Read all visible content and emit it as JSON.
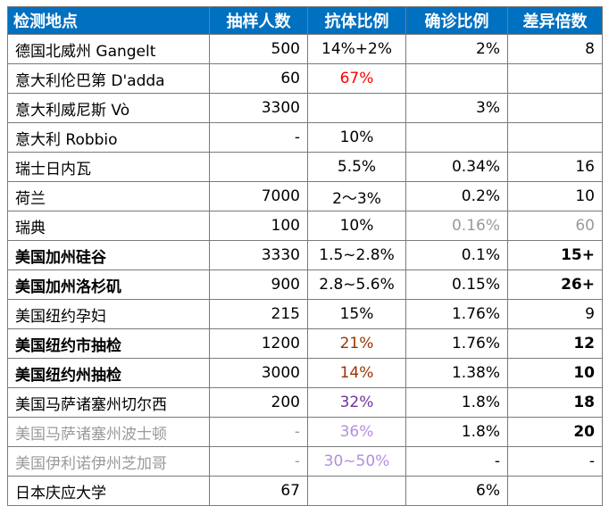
{
  "header": {
    "location": "检测地点",
    "sample_size": "抽样人数",
    "antibody_ratio": "抗体比例",
    "confirmed_ratio": "确诊比例",
    "multiple": "差异倍数"
  },
  "rows": [
    {
      "location": "德国北威州 Gangelt",
      "sample": "500",
      "antibody": "14%+2%",
      "confirmed": "2%",
      "multiple": "8"
    },
    {
      "location": "意大利伦巴第 D'adda",
      "sample": "60",
      "antibody": "67%",
      "confirmed": "",
      "multiple": ""
    },
    {
      "location": "意大利威尼斯 Vò",
      "sample": "3300",
      "antibody": "",
      "confirmed": "3%",
      "multiple": ""
    },
    {
      "location": "意大利 Robbio",
      "sample": "-",
      "antibody": "10%",
      "confirmed": "",
      "multiple": ""
    },
    {
      "location": "瑞士日内瓦",
      "sample": "",
      "antibody": "5.5%",
      "confirmed": "0.34%",
      "multiple": "16"
    },
    {
      "location": "荷兰",
      "sample": "7000",
      "antibody": "2～3%",
      "confirmed": "0.2%",
      "multiple": "10"
    },
    {
      "location": "瑞典",
      "sample": "100",
      "antibody": "10%",
      "confirmed": "0.16%",
      "multiple": "60"
    },
    {
      "location": "美国加州硅谷",
      "sample": "3330",
      "antibody": "1.5~2.8%",
      "confirmed": "0.1%",
      "multiple": "15+"
    },
    {
      "location": "美国加州洛杉矶",
      "sample": "900",
      "antibody": "2.8~5.6%",
      "confirmed": "0.15%",
      "multiple": "26+"
    },
    {
      "location": "美国纽约孕妇",
      "sample": "215",
      "antibody": "15%",
      "confirmed": "1.76%",
      "multiple": "9"
    },
    {
      "location": "美国纽约市抽检",
      "sample": "1200",
      "antibody": "21%",
      "confirmed": "1.76%",
      "multiple": "12"
    },
    {
      "location": "美国纽约州抽检",
      "sample": "3000",
      "antibody": "14%",
      "confirmed": "1.38%",
      "multiple": "10"
    },
    {
      "location": "美国马萨诸塞州切尔西",
      "sample": "200",
      "antibody": "32%",
      "confirmed": "1.8%",
      "multiple": "18"
    },
    {
      "location": "美国马萨诸塞州波士顿",
      "sample": "-",
      "antibody": "36%",
      "confirmed": "1.8%",
      "multiple": "20"
    },
    {
      "location": "美国伊利诺伊州芝加哥",
      "sample": "-",
      "antibody": "30~50%",
      "confirmed": "-",
      "multiple": "-"
    },
    {
      "location": "日本庆应大学",
      "sample": "67",
      "antibody": "",
      "confirmed": "6%",
      "multiple": ""
    }
  ],
  "colors": {
    "header_bg": "#0070c0",
    "header_text": "#ffffff",
    "red": "#ff0000",
    "brown": "#993300",
    "purple": "#7030a0",
    "light_purple": "#b48ee0",
    "gray": "#9a9a9a"
  }
}
